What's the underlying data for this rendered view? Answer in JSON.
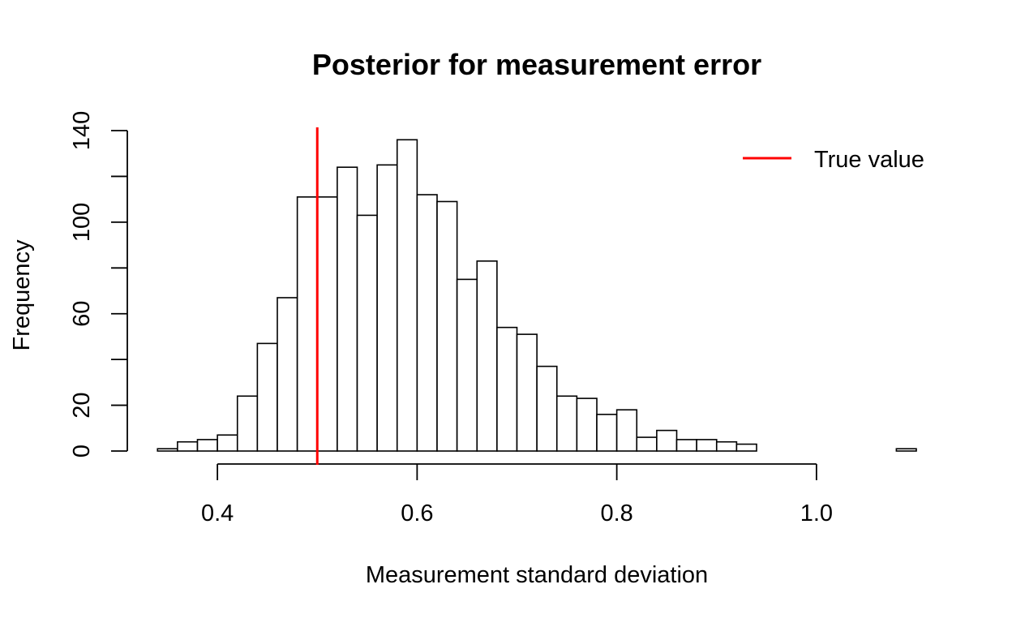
{
  "chart_data": {
    "type": "histogram",
    "title": "Posterior for measurement error",
    "xlabel": "Measurement standard deviation",
    "ylabel": "Frequency",
    "xlim": [
      0.3,
      1.1
    ],
    "ylim": [
      0,
      140
    ],
    "x_ticks": [
      0.4,
      0.6,
      0.8,
      1.0
    ],
    "x_tick_labels": [
      "0.4",
      "0.6",
      "0.8",
      "1.0"
    ],
    "y_ticks": [
      0,
      20,
      40,
      60,
      80,
      100,
      120,
      140
    ],
    "y_tick_labels": [
      "0",
      "20",
      "",
      "60",
      "",
      "100",
      "",
      "140"
    ],
    "bin_width": 0.02,
    "bin_starts": [
      0.34,
      0.36,
      0.38,
      0.4,
      0.42,
      0.44,
      0.46,
      0.48,
      0.5,
      0.52,
      0.54,
      0.56,
      0.58,
      0.6,
      0.62,
      0.64,
      0.66,
      0.68,
      0.7,
      0.72,
      0.74,
      0.76,
      0.78,
      0.8,
      0.82,
      0.84,
      0.86,
      0.88,
      0.9,
      0.92,
      0.94,
      0.96,
      0.98,
      1.0,
      1.02,
      1.04,
      1.06,
      1.08
    ],
    "counts": [
      1,
      4,
      5,
      7,
      24,
      47,
      67,
      111,
      111,
      124,
      103,
      125,
      136,
      112,
      109,
      75,
      83,
      54,
      51,
      37,
      24,
      23,
      16,
      18,
      6,
      9,
      5,
      5,
      4,
      3,
      0,
      0,
      0,
      0,
      0,
      0,
      0,
      1
    ],
    "reference_line": {
      "x": 0.5,
      "label": "True value",
      "color": "#ff0000"
    },
    "legend_position": "top-right",
    "grid": false
  }
}
